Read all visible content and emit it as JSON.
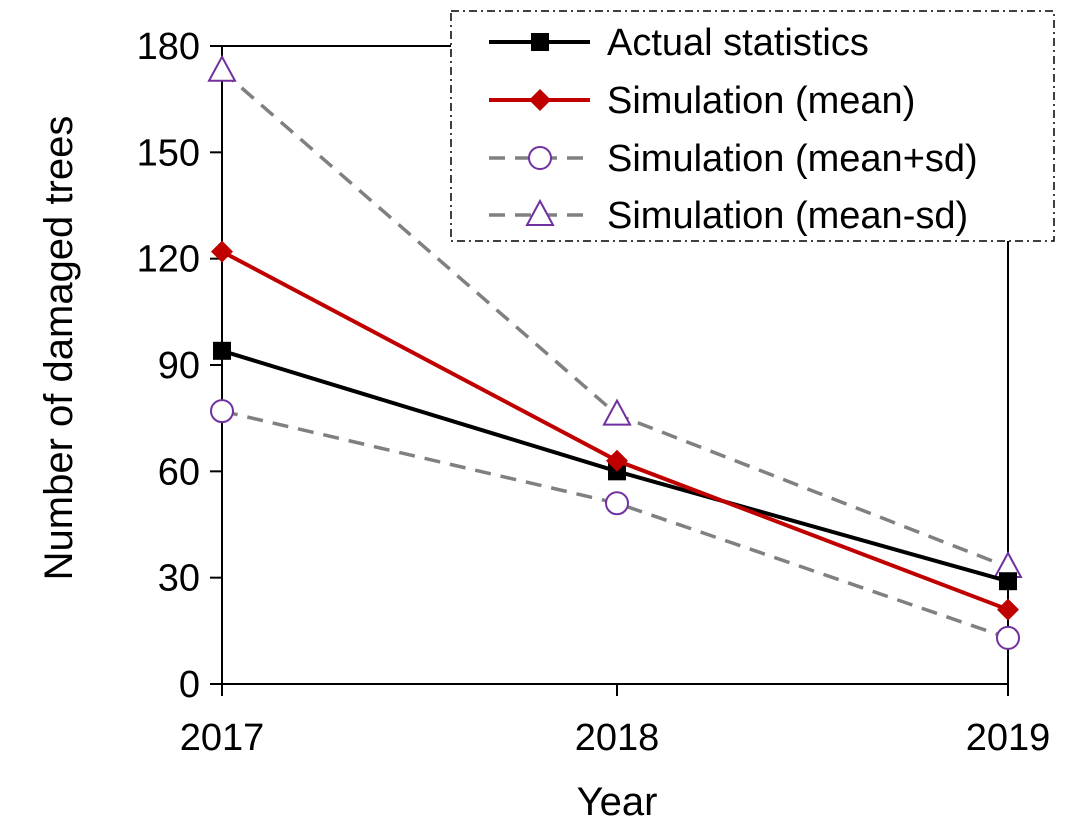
{
  "chart_data": {
    "type": "line",
    "title": "",
    "xlabel": "Year",
    "ylabel": "Number of damaged  trees",
    "categories": [
      "2017",
      "2018",
      "2019"
    ],
    "ylim": [
      0,
      180
    ],
    "yticks": [
      "0",
      "30",
      "60",
      "90",
      "120",
      "150",
      "180"
    ],
    "legend_position": "top-right",
    "grid": false,
    "series": [
      {
        "name": "Actual statistics",
        "values": [
          94,
          60,
          29
        ],
        "color": "#000000",
        "marker": "square",
        "dash": "solid"
      },
      {
        "name": "Simulation (mean)",
        "values": [
          122,
          63,
          21
        ],
        "color": "#c00000",
        "marker": "diamond",
        "dash": "solid"
      },
      {
        "name": "Simulation (mean+sd)",
        "values": [
          77,
          51,
          13
        ],
        "color": "#808080",
        "marker_color": "#7030a0",
        "marker": "circle",
        "dash": "dashed"
      },
      {
        "name": "Simulation (mean-sd)",
        "values": [
          173,
          76,
          33
        ],
        "color": "#808080",
        "marker_color": "#7030a0",
        "marker": "triangle",
        "dash": "dashed"
      }
    ]
  }
}
